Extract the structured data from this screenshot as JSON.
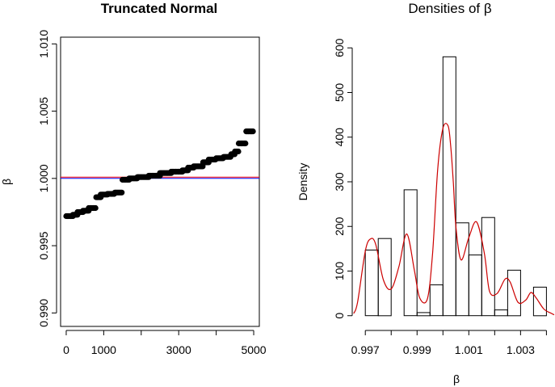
{
  "chart_data": [
    {
      "type": "scatter",
      "title": "Truncated Normal",
      "xlabel": "",
      "ylabel": "β",
      "xlim": [
        -150,
        5150
      ],
      "ylim": [
        0.989,
        1.0105
      ],
      "x_ticks": [
        0,
        1000,
        3000,
        5000
      ],
      "x_tick_marks": [
        0,
        1000,
        2000,
        3000,
        4000,
        5000
      ],
      "y_ticks": [
        "0.990",
        "0.995",
        "1.000",
        "1.005",
        "1.010"
      ],
      "y_tick_values": [
        0.99,
        0.995,
        1.0,
        1.005,
        1.01
      ],
      "hlines": [
        {
          "y": 1.0001,
          "color": "#ff0000"
        },
        {
          "y": 1.0,
          "color": "#0000ff"
        }
      ],
      "segments": [
        {
          "x0": 0,
          "x1": 180,
          "y": 0.9972
        },
        {
          "x0": 180,
          "x1": 300,
          "y": 0.9973
        },
        {
          "x0": 300,
          "x1": 450,
          "y": 0.9975
        },
        {
          "x0": 450,
          "x1": 600,
          "y": 0.9976
        },
        {
          "x0": 600,
          "x1": 800,
          "y": 0.9978
        },
        {
          "x0": 800,
          "x1": 920,
          "y": 0.9986
        },
        {
          "x0": 920,
          "x1": 1100,
          "y": 0.9988
        },
        {
          "x0": 1100,
          "x1": 1300,
          "y": 0.99885
        },
        {
          "x0": 1300,
          "x1": 1500,
          "y": 0.99895
        },
        {
          "x0": 1500,
          "x1": 1680,
          "y": 0.9999
        },
        {
          "x0": 1680,
          "x1": 1900,
          "y": 1.0
        },
        {
          "x0": 1900,
          "x1": 2200,
          "y": 1.0001
        },
        {
          "x0": 2200,
          "x1": 2500,
          "y": 1.0002
        },
        {
          "x0": 2500,
          "x1": 2800,
          "y": 1.0004
        },
        {
          "x0": 2800,
          "x1": 3100,
          "y": 1.0005
        },
        {
          "x0": 3100,
          "x1": 3250,
          "y": 1.0006
        },
        {
          "x0": 3250,
          "x1": 3400,
          "y": 1.0008
        },
        {
          "x0": 3400,
          "x1": 3650,
          "y": 1.0009
        },
        {
          "x0": 3650,
          "x1": 3800,
          "y": 1.0012
        },
        {
          "x0": 3800,
          "x1": 4000,
          "y": 1.0014
        },
        {
          "x0": 4000,
          "x1": 4200,
          "y": 1.0015
        },
        {
          "x0": 4200,
          "x1": 4400,
          "y": 1.0016
        },
        {
          "x0": 4400,
          "x1": 4500,
          "y": 1.0018
        },
        {
          "x0": 4500,
          "x1": 4600,
          "y": 1.002
        },
        {
          "x0": 4600,
          "x1": 4800,
          "y": 1.0026
        },
        {
          "x0": 4800,
          "x1": 5000,
          "y": 1.0035
        }
      ],
      "point_color": "#000000"
    },
    {
      "type": "bar",
      "title": "Densities of β",
      "xlabel": "β",
      "ylabel": "Density",
      "xlim": [
        0.99665,
        1.0043
      ],
      "ylim": [
        -24,
        624
      ],
      "x_ticks": [
        "0.997",
        "0.999",
        "1.001",
        "1.003"
      ],
      "x_tick_values": [
        0.997,
        0.999,
        1.001,
        1.003
      ],
      "x_tick_marks": [
        0.997,
        0.998,
        0.999,
        1.0,
        1.001,
        1.002,
        1.003,
        1.004
      ],
      "y_ticks": [
        0,
        100,
        200,
        300,
        400,
        500,
        600
      ],
      "bin_edges": [
        0.997,
        0.9975,
        0.998,
        0.9985,
        0.999,
        0.9995,
        1.0,
        1.0005,
        1.001,
        1.0015,
        1.002,
        1.0025,
        1.003,
        1.0035,
        1.004
      ],
      "bar_values": [
        147,
        173,
        0,
        282,
        7,
        69,
        580,
        208,
        136,
        220,
        13,
        102,
        0,
        64
      ],
      "density_curve": {
        "color": "#cc0000",
        "x": [
          0.99655,
          0.9967,
          0.997,
          0.9972,
          0.9974,
          0.9977,
          0.998,
          0.9983,
          0.9986,
          0.9989,
          0.9991,
          0.9994,
          0.9996,
          0.9998,
          1.0,
          1.0002,
          1.0003,
          1.0004,
          1.0005,
          1.0007,
          1.001,
          1.0013,
          1.0016,
          1.0018,
          1.0021,
          1.0024,
          1.0026,
          1.0029,
          1.0032,
          1.0034,
          1.0036,
          1.0039,
          1.0042,
          1.0043
        ],
        "y": [
          5,
          30,
          145,
          172,
          160,
          80,
          60,
          110,
          183,
          100,
          40,
          38,
          140,
          330,
          420,
          425,
          380,
          300,
          200,
          125,
          175,
          210,
          140,
          55,
          50,
          82,
          75,
          30,
          35,
          52,
          40,
          15,
          5,
          2
        ]
      }
    }
  ]
}
